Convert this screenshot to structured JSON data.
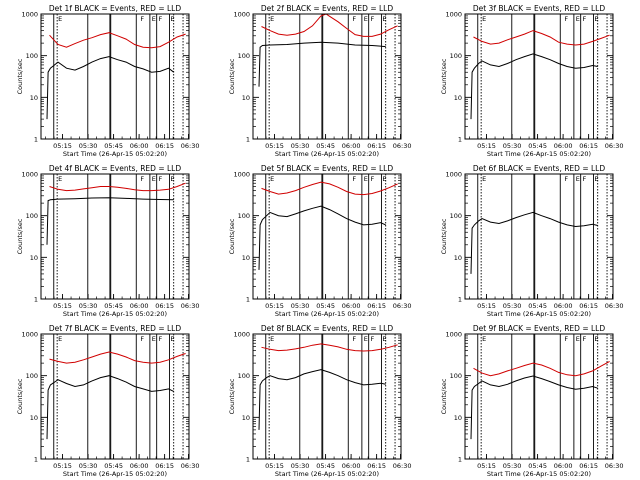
{
  "time_ticks": [
    "05:15",
    "05:30",
    "05:45",
    "06:00",
    "06:15",
    "06:30"
  ],
  "y_ticks": [
    "1",
    "10",
    "100",
    "1000"
  ],
  "marker_letters": [
    "E",
    "F",
    "E",
    "F",
    "E"
  ],
  "colors": {
    "events": "#000000",
    "lld": "#d00000"
  },
  "chart_data": [
    {
      "type": "line",
      "title": "Det 1f BLACK = Events, RED = LLD",
      "xlabel": "Start Time (26-Apr-15 05:02:20)",
      "ylabel": "Counts/sec",
      "y_log": true,
      "ylim": [
        1,
        1000
      ],
      "series": [
        {
          "x": [
            5.0,
            10.0,
            15.0,
            20.0,
            25.0,
            30.0,
            35.0,
            40.0,
            45.0,
            50.0,
            55.0,
            60.0,
            65.0,
            70.0,
            75.0,
            80.0,
            85.0
          ],
          "y": [
            310,
            185,
            160,
            195,
            235,
            270,
            320,
            355,
            300,
            250,
            185,
            160,
            155,
            165,
            210,
            280,
            330
          ]
        },
        {
          "x": [
            3.5,
            4.2,
            5.5,
            8.0,
            10.0,
            15.0,
            20.0,
            25.0,
            30.0,
            35.0,
            40.0,
            45.0,
            50.0,
            55.0,
            60.0,
            65.0,
            70.0,
            75.0,
            78.0
          ],
          "y": [
            3,
            40,
            50,
            60,
            70,
            50,
            45,
            55,
            70,
            85,
            95,
            80,
            70,
            55,
            48,
            40,
            42,
            50,
            40
          ]
        }
      ]
    },
    {
      "type": "line",
      "title": "Det 2f BLACK = Events, RED = LLD",
      "xlabel": "Start Time (26-Apr-15 05:02:20)",
      "ylabel": "Counts/sec",
      "y_log": true,
      "ylim": [
        1,
        1000
      ],
      "series": [
        {
          "x": [
            5.0,
            10.0,
            15.0,
            20.0,
            25.0,
            30.0,
            35.0,
            40.0,
            43.0,
            45.0,
            50.0,
            55.0,
            60.0,
            65.0,
            70.0,
            75.0,
            80.0,
            85.0
          ],
          "y": [
            500,
            400,
            330,
            310,
            330,
            380,
            520,
            900,
            1000,
            880,
            650,
            450,
            320,
            290,
            290,
            330,
            420,
            520
          ]
        },
        {
          "x": [
            3.5,
            4.2,
            5.5,
            10.0,
            20.0,
            30.0,
            40.0,
            50.0,
            60.0,
            70.0,
            78.0
          ],
          "y": [
            18,
            160,
            175,
            180,
            185,
            200,
            210,
            200,
            180,
            175,
            165
          ]
        }
      ]
    },
    {
      "type": "line",
      "title": "Det 3f BLACK = Events, RED = LLD",
      "xlabel": "Start Time (26-Apr-15 05:02:20)",
      "ylabel": "Counts/sec",
      "y_log": true,
      "ylim": [
        1,
        1000
      ],
      "series": [
        {
          "x": [
            5.0,
            10.0,
            15.0,
            20.0,
            25.0,
            30.0,
            35.0,
            40.0,
            45.0,
            50.0,
            55.0,
            60.0,
            65.0,
            70.0,
            75.0,
            80.0,
            85.0
          ],
          "y": [
            280,
            220,
            190,
            200,
            240,
            280,
            330,
            400,
            340,
            280,
            210,
            190,
            180,
            190,
            220,
            260,
            310
          ]
        },
        {
          "x": [
            3.5,
            4.2,
            5.5,
            8.0,
            10.0,
            15.0,
            20.0,
            25.0,
            30.0,
            35.0,
            40.0,
            45.0,
            50.0,
            55.0,
            60.0,
            65.0,
            70.0,
            75.0,
            78.0
          ],
          "y": [
            3,
            40,
            50,
            65,
            75,
            60,
            55,
            65,
            80,
            95,
            110,
            95,
            80,
            65,
            55,
            50,
            52,
            58,
            55
          ]
        }
      ]
    },
    {
      "type": "line",
      "title": "Det 4f BLACK = Events, RED = LLD",
      "xlabel": "Start Time (26-Apr-15 05:02:20)",
      "ylabel": "Counts/sec",
      "y_log": true,
      "ylim": [
        1,
        1000
      ],
      "series": [
        {
          "x": [
            5.0,
            10.0,
            15.0,
            20.0,
            25.0,
            30.0,
            35.0,
            40.0,
            45.0,
            50.0,
            55.0,
            60.0,
            65.0,
            70.0,
            75.0,
            80.0,
            85.0
          ],
          "y": [
            500,
            430,
            400,
            410,
            440,
            470,
            500,
            500,
            480,
            450,
            420,
            400,
            400,
            410,
            430,
            500,
            600
          ]
        },
        {
          "x": [
            3.5,
            4.2,
            5.5,
            10.0,
            20.0,
            30.0,
            40.0,
            50.0,
            60.0,
            70.0,
            78.0
          ],
          "y": [
            20,
            230,
            240,
            250,
            255,
            265,
            270,
            260,
            250,
            245,
            240
          ]
        }
      ]
    },
    {
      "type": "line",
      "title": "Det 5f BLACK = Events, RED = LLD",
      "xlabel": "Start Time (26-Apr-15 05:02:20)",
      "ylabel": "Counts/sec",
      "y_log": true,
      "ylim": [
        1,
        1000
      ],
      "series": [
        {
          "x": [
            5.0,
            10.0,
            15.0,
            20.0,
            25.0,
            30.0,
            35.0,
            40.0,
            45.0,
            50.0,
            55.0,
            60.0,
            65.0,
            70.0,
            75.0,
            80.0,
            85.0
          ],
          "y": [
            450,
            380,
            330,
            350,
            400,
            480,
            560,
            640,
            580,
            480,
            380,
            330,
            320,
            340,
            390,
            470,
            580
          ]
        },
        {
          "x": [
            3.5,
            4.2,
            5.5,
            8.0,
            10.0,
            15.0,
            20.0,
            25.0,
            30.0,
            35.0,
            40.0,
            45.0,
            50.0,
            55.0,
            60.0,
            65.0,
            70.0,
            75.0,
            78.0
          ],
          "y": [
            5,
            60,
            80,
            100,
            120,
            100,
            95,
            110,
            130,
            150,
            170,
            140,
            110,
            85,
            70,
            60,
            62,
            68,
            60
          ]
        }
      ]
    },
    {
      "type": "line",
      "title": "Det 6f BLACK = Events, RED = LLD",
      "xlabel": "Start Time (26-Apr-15 05:02:20)",
      "ylabel": "Counts/sec",
      "y_log": true,
      "ylim": [
        1,
        1000
      ],
      "series": [
        {
          "x": [
            3.5,
            4.2,
            5.5,
            8.0,
            10.0,
            15.0,
            20.0,
            25.0,
            30.0,
            35.0,
            40.0,
            45.0,
            50.0,
            55.0,
            60.0,
            65.0,
            70.0,
            75.0,
            78.0
          ],
          "y": [
            4,
            50,
            60,
            75,
            85,
            70,
            65,
            75,
            90,
            105,
            120,
            100,
            85,
            70,
            60,
            55,
            57,
            62,
            58
          ]
        }
      ]
    },
    {
      "type": "line",
      "title": "Det 7f BLACK = Events, RED = LLD",
      "xlabel": "Start Time (26-Apr-15 05:02:20)",
      "ylabel": "Counts/sec",
      "y_log": true,
      "ylim": [
        1,
        1000
      ],
      "series": [
        {
          "x": [
            5.0,
            10.0,
            15.0,
            20.0,
            25.0,
            30.0,
            35.0,
            40.0,
            45.0,
            50.0,
            55.0,
            60.0,
            65.0,
            70.0,
            75.0,
            80.0,
            85.0
          ],
          "y": [
            250,
            220,
            200,
            210,
            240,
            280,
            330,
            370,
            330,
            280,
            230,
            210,
            200,
            210,
            240,
            290,
            340
          ]
        },
        {
          "x": [
            3.5,
            4.2,
            5.5,
            8.0,
            10.0,
            15.0,
            20.0,
            25.0,
            30.0,
            35.0,
            40.0,
            45.0,
            50.0,
            55.0,
            60.0,
            65.0,
            70.0,
            75.0,
            78.0
          ],
          "y": [
            3,
            45,
            60,
            70,
            80,
            65,
            55,
            60,
            75,
            90,
            100,
            85,
            70,
            55,
            48,
            42,
            44,
            48,
            42
          ]
        }
      ]
    },
    {
      "type": "line",
      "title": "Det 8f BLACK = Events, RED = LLD",
      "xlabel": "Start Time (26-Apr-15 05:02:20)",
      "ylabel": "Counts/sec",
      "y_log": true,
      "ylim": [
        1,
        1000
      ],
      "series": [
        {
          "x": [
            5.0,
            10.0,
            15.0,
            20.0,
            25.0,
            30.0,
            35.0,
            40.0,
            45.0,
            50.0,
            55.0,
            60.0,
            65.0,
            70.0,
            75.0,
            80.0,
            85.0
          ],
          "y": [
            480,
            430,
            400,
            410,
            440,
            480,
            540,
            580,
            540,
            490,
            430,
            400,
            390,
            400,
            430,
            480,
            550
          ]
        },
        {
          "x": [
            3.5,
            4.2,
            5.5,
            8.0,
            10.0,
            15.0,
            20.0,
            25.0,
            30.0,
            35.0,
            40.0,
            45.0,
            50.0,
            55.0,
            60.0,
            65.0,
            70.0,
            75.0,
            78.0
          ],
          "y": [
            5,
            60,
            75,
            90,
            100,
            85,
            80,
            90,
            110,
            125,
            140,
            120,
            100,
            80,
            68,
            60,
            62,
            66,
            62
          ]
        }
      ]
    },
    {
      "type": "line",
      "title": "Det 9f BLACK = Events, RED = LLD",
      "xlabel": "Start Time (26-Apr-15 05:02:20)",
      "ylabel": "Counts/sec",
      "y_log": true,
      "ylim": [
        1,
        1000
      ],
      "series": [
        {
          "x": [
            5.0,
            10.0,
            15.0,
            20.0,
            25.0,
            30.0,
            35.0,
            40.0,
            45.0,
            50.0,
            55.0,
            60.0,
            65.0,
            70.0,
            75.0,
            80.0,
            85.0
          ],
          "y": [
            150,
            115,
            100,
            110,
            130,
            150,
            175,
            200,
            180,
            150,
            120,
            105,
            100,
            110,
            130,
            170,
            220
          ]
        },
        {
          "x": [
            3.5,
            4.2,
            5.5,
            8.0,
            10.0,
            15.0,
            20.0,
            25.0,
            30.0,
            35.0,
            40.0,
            45.0,
            50.0,
            55.0,
            60.0,
            65.0,
            70.0,
            75.0,
            78.0
          ],
          "y": [
            3,
            45,
            55,
            65,
            75,
            60,
            55,
            62,
            75,
            88,
            98,
            85,
            72,
            60,
            52,
            47,
            50,
            55,
            50
          ]
        }
      ]
    }
  ]
}
